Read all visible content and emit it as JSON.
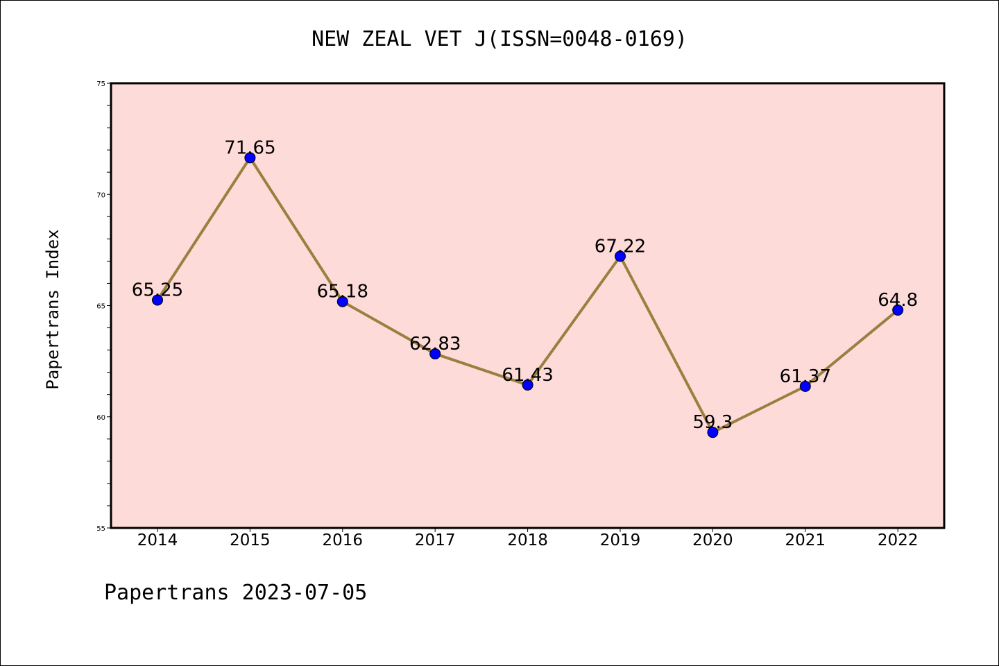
{
  "chart_data": {
    "type": "line",
    "title": "NEW ZEAL VET J(ISSN=0048-0169)",
    "xlabel": "",
    "ylabel": "Papertrans Index",
    "categories": [
      "2014",
      "2015",
      "2016",
      "2017",
      "2018",
      "2019",
      "2020",
      "2021",
      "2022"
    ],
    "series": [
      {
        "values": [
          65.25,
          71.65,
          65.18,
          62.83,
          61.43,
          67.22,
          59.3,
          61.37,
          64.8
        ],
        "labels": [
          "65.25",
          "71.65",
          "65.18",
          "62.83",
          "61.43",
          "67.22",
          "59.3",
          "61.37",
          "64.8"
        ]
      }
    ],
    "ylim": [
      55,
      75
    ],
    "yticks": [
      "55",
      "60",
      "65",
      "70",
      "75"
    ],
    "grid": false,
    "colors": {
      "plot_background": "#fddbd8",
      "line": "#9a8040",
      "marker": "#0000ff"
    }
  },
  "footer": "Papertrans 2023-07-05"
}
